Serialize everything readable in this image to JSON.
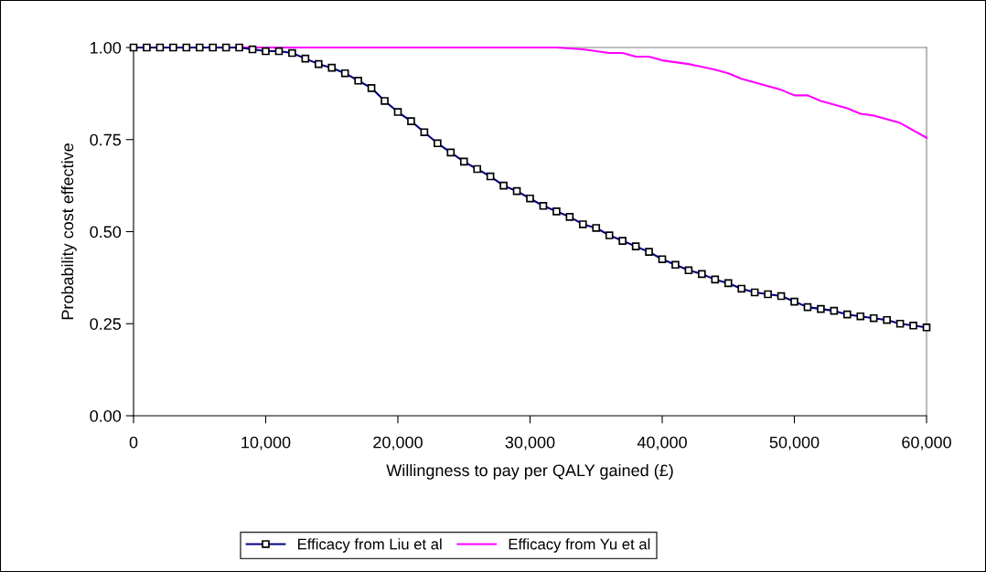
{
  "chart_data": {
    "type": "line",
    "xlabel": "Willingness to pay per QALY gained (£)",
    "ylabel": "Probability cost effective",
    "xlim": [
      0,
      60000
    ],
    "ylim": [
      0,
      1
    ],
    "xticks": [
      0,
      {
        "value": 10000,
        "label": "10,000"
      },
      {
        "value": 20000,
        "label": "20,000"
      },
      {
        "value": 30000,
        "label": "30,000"
      },
      {
        "value": 40000,
        "label": "40,000"
      },
      {
        "value": 50000,
        "label": "50,000"
      },
      {
        "value": 60000,
        "label": "60,000"
      }
    ],
    "yticks": [
      {
        "value": 0,
        "label": "0.00"
      },
      {
        "value": 0.25,
        "label": "0.25"
      },
      {
        "value": 0.5,
        "label": "0.50"
      },
      {
        "value": 0.75,
        "label": "0.75"
      },
      {
        "value": 1,
        "label": "1.00"
      }
    ],
    "grid": false,
    "legend": "bottom",
    "series": [
      {
        "name": "Efficacy from Liu et al",
        "color": "#000080",
        "marker": "square",
        "x": [
          0,
          1000,
          2000,
          3000,
          4000,
          5000,
          6000,
          7000,
          8000,
          9000,
          10000,
          11000,
          12000,
          13000,
          14000,
          15000,
          16000,
          17000,
          18000,
          19000,
          20000,
          21000,
          22000,
          23000,
          24000,
          25000,
          26000,
          27000,
          28000,
          29000,
          30000,
          31000,
          32000,
          33000,
          34000,
          35000,
          36000,
          37000,
          38000,
          39000,
          40000,
          41000,
          42000,
          43000,
          44000,
          45000,
          46000,
          47000,
          48000,
          49000,
          50000,
          51000,
          52000,
          53000,
          54000,
          55000,
          56000,
          57000,
          58000,
          59000,
          60000
        ],
        "values": [
          1,
          1,
          1,
          1,
          1,
          1,
          1,
          1,
          1,
          0.995,
          0.99,
          0.99,
          0.985,
          0.97,
          0.955,
          0.945,
          0.93,
          0.91,
          0.89,
          0.855,
          0.825,
          0.8,
          0.77,
          0.74,
          0.715,
          0.69,
          0.67,
          0.65,
          0.625,
          0.61,
          0.59,
          0.57,
          0.555,
          0.54,
          0.52,
          0.51,
          0.49,
          0.475,
          0.46,
          0.445,
          0.425,
          0.41,
          0.395,
          0.385,
          0.37,
          0.36,
          0.345,
          0.335,
          0.33,
          0.325,
          0.31,
          0.295,
          0.29,
          0.285,
          0.275,
          0.27,
          0.265,
          0.26,
          0.25,
          0.245,
          0.24
        ]
      },
      {
        "name": "Efficacy from Yu et al",
        "color": "#ff00ff",
        "marker": "none",
        "x": [
          0,
          32000,
          34000,
          36000,
          37000,
          38000,
          39000,
          40000,
          42000,
          44000,
          45000,
          46000,
          48000,
          49000,
          50000,
          51000,
          52000,
          54000,
          55000,
          56000,
          58000,
          60000
        ],
        "values": [
          1,
          1,
          0.995,
          0.985,
          0.985,
          0.975,
          0.975,
          0.965,
          0.955,
          0.94,
          0.93,
          0.915,
          0.895,
          0.885,
          0.87,
          0.87,
          0.855,
          0.835,
          0.82,
          0.815,
          0.795,
          0.755
        ]
      }
    ]
  }
}
